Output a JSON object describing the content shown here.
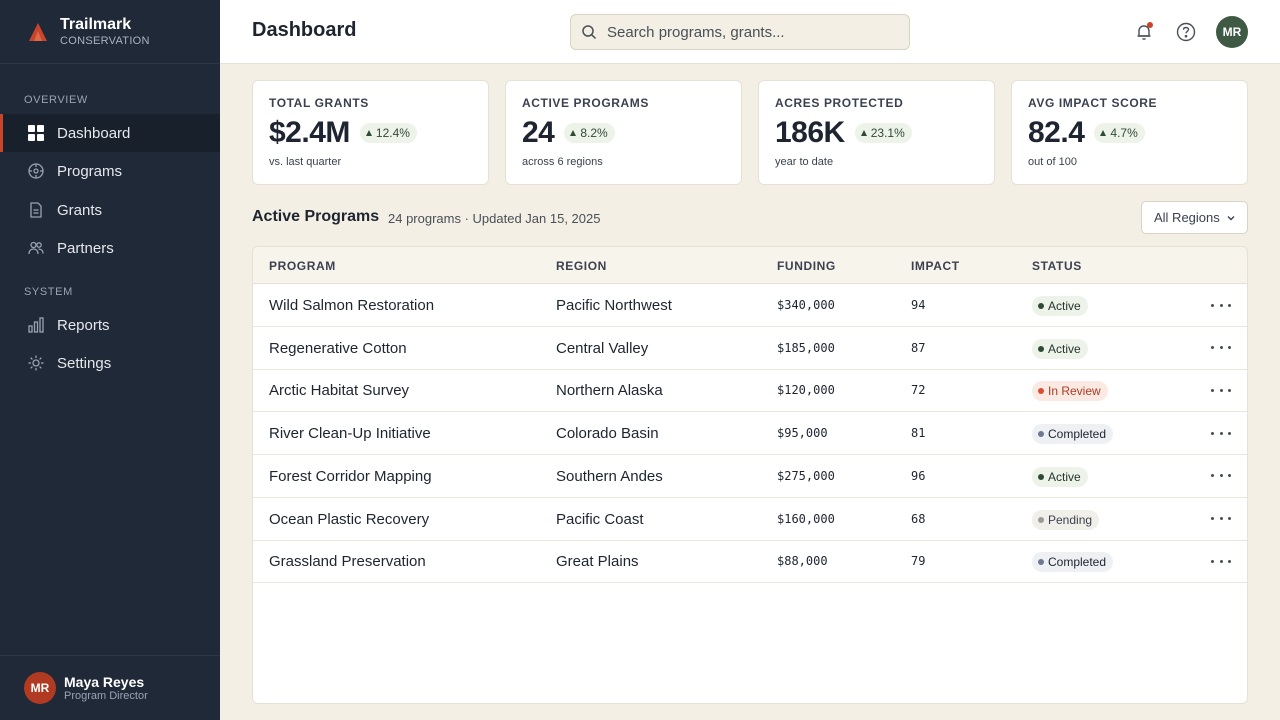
{
  "brand": {
    "name": "Trailmark",
    "subtitle": "CONSERVATION",
    "logo_color": "#c8452b"
  },
  "sidebar": {
    "sections": [
      {
        "label": "OVERVIEW"
      },
      {
        "label": "SYSTEM"
      }
    ],
    "items": [
      {
        "label": "Dashboard",
        "icon": "grid-icon",
        "active": true
      },
      {
        "label": "Programs",
        "icon": "compass-icon"
      },
      {
        "label": "Grants",
        "icon": "document-icon"
      },
      {
        "label": "Partners",
        "icon": "users-icon"
      },
      {
        "label": "Reports",
        "icon": "bar-chart-icon"
      },
      {
        "label": "Settings",
        "icon": "sun-gear-icon"
      }
    ],
    "user": {
      "initials": "MR",
      "name": "Maya Reyes",
      "role": "Program Director"
    }
  },
  "header": {
    "title": "Dashboard",
    "search_placeholder": "Search programs, grants...",
    "avatar_initials": "MR"
  },
  "kpis": [
    {
      "label": "TOTAL GRANTS",
      "value": "$2.4M",
      "delta": "12.4%",
      "sub": "vs. last quarter"
    },
    {
      "label": "ACTIVE PROGRAMS",
      "value": "24",
      "delta": "8.2%",
      "sub": "across 6 regions"
    },
    {
      "label": "ACRES PROTECTED",
      "value": "186K",
      "delta": "23.1%",
      "sub": "year to date"
    },
    {
      "label": "AVG IMPACT SCORE",
      "value": "82.4",
      "delta": "4.7%",
      "sub": "out of 100"
    }
  ],
  "programs": {
    "title": "Active Programs",
    "meta": "24 programs · Updated Jan 15, 2025",
    "filter": "All Regions",
    "columns": [
      "PROGRAM",
      "REGION",
      "FUNDING",
      "IMPACT",
      "STATUS"
    ],
    "rows": [
      {
        "program": "Wild Salmon Restoration",
        "region": "Pacific Northwest",
        "funding": "$340,000",
        "impact": "94",
        "status": "Active",
        "status_kind": "active"
      },
      {
        "program": "Regenerative Cotton",
        "region": "Central Valley",
        "funding": "$185,000",
        "impact": "87",
        "status": "Active",
        "status_kind": "active"
      },
      {
        "program": "Arctic Habitat Survey",
        "region": "Northern Alaska",
        "funding": "$120,000",
        "impact": "72",
        "status": "In Review",
        "status_kind": "review"
      },
      {
        "program": "River Clean-Up Initiative",
        "region": "Colorado Basin",
        "funding": "$95,000",
        "impact": "81",
        "status": "Completed",
        "status_kind": "completed"
      },
      {
        "program": "Forest Corridor Mapping",
        "region": "Southern Andes",
        "funding": "$275,000",
        "impact": "96",
        "status": "Active",
        "status_kind": "active"
      },
      {
        "program": "Ocean Plastic Recovery",
        "region": "Pacific Coast",
        "funding": "$160,000",
        "impact": "68",
        "status": "Pending",
        "status_kind": "pending"
      },
      {
        "program": "Grassland Preservation",
        "region": "Great Plains",
        "funding": "$88,000",
        "impact": "79",
        "status": "Completed",
        "status_kind": "completed"
      }
    ]
  }
}
